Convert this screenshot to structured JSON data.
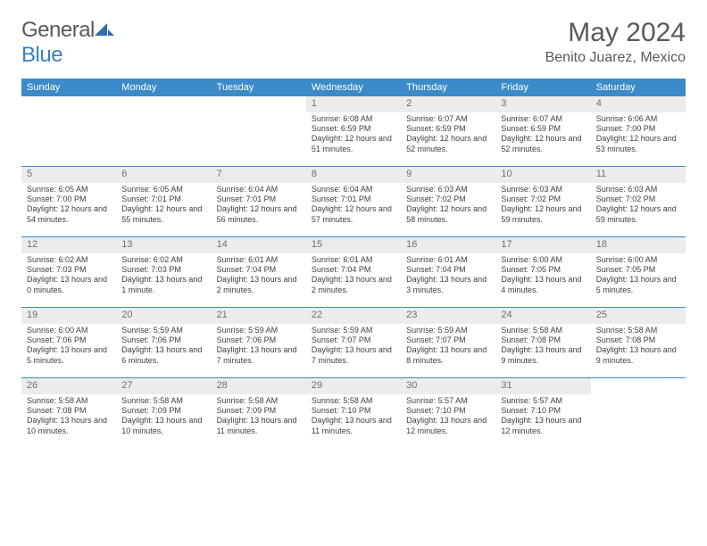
{
  "brand": {
    "name_gray": "General",
    "name_blue": "Blue"
  },
  "title": "May 2024",
  "location": "Benito Juarez, Mexico",
  "colors": {
    "header_bg": "#3b8bc9",
    "header_text": "#ffffff",
    "daynum_bg": "#ececec",
    "daynum_text": "#707070",
    "body_text": "#404040",
    "title_text": "#595959",
    "week_divider": "#3b8bc9"
  },
  "weekdays": [
    "Sunday",
    "Monday",
    "Tuesday",
    "Wednesday",
    "Thursday",
    "Friday",
    "Saturday"
  ],
  "weeks": [
    [
      null,
      null,
      null,
      {
        "n": "1",
        "sr": "6:08 AM",
        "ss": "6:59 PM",
        "dl": "12 hours and 51 minutes."
      },
      {
        "n": "2",
        "sr": "6:07 AM",
        "ss": "6:59 PM",
        "dl": "12 hours and 52 minutes."
      },
      {
        "n": "3",
        "sr": "6:07 AM",
        "ss": "6:59 PM",
        "dl": "12 hours and 52 minutes."
      },
      {
        "n": "4",
        "sr": "6:06 AM",
        "ss": "7:00 PM",
        "dl": "12 hours and 53 minutes."
      }
    ],
    [
      {
        "n": "5",
        "sr": "6:05 AM",
        "ss": "7:00 PM",
        "dl": "12 hours and 54 minutes."
      },
      {
        "n": "6",
        "sr": "6:05 AM",
        "ss": "7:01 PM",
        "dl": "12 hours and 55 minutes."
      },
      {
        "n": "7",
        "sr": "6:04 AM",
        "ss": "7:01 PM",
        "dl": "12 hours and 56 minutes."
      },
      {
        "n": "8",
        "sr": "6:04 AM",
        "ss": "7:01 PM",
        "dl": "12 hours and 57 minutes."
      },
      {
        "n": "9",
        "sr": "6:03 AM",
        "ss": "7:02 PM",
        "dl": "12 hours and 58 minutes."
      },
      {
        "n": "10",
        "sr": "6:03 AM",
        "ss": "7:02 PM",
        "dl": "12 hours and 59 minutes."
      },
      {
        "n": "11",
        "sr": "6:03 AM",
        "ss": "7:02 PM",
        "dl": "12 hours and 59 minutes."
      }
    ],
    [
      {
        "n": "12",
        "sr": "6:02 AM",
        "ss": "7:03 PM",
        "dl": "13 hours and 0 minutes."
      },
      {
        "n": "13",
        "sr": "6:02 AM",
        "ss": "7:03 PM",
        "dl": "13 hours and 1 minute."
      },
      {
        "n": "14",
        "sr": "6:01 AM",
        "ss": "7:04 PM",
        "dl": "13 hours and 2 minutes."
      },
      {
        "n": "15",
        "sr": "6:01 AM",
        "ss": "7:04 PM",
        "dl": "13 hours and 2 minutes."
      },
      {
        "n": "16",
        "sr": "6:01 AM",
        "ss": "7:04 PM",
        "dl": "13 hours and 3 minutes."
      },
      {
        "n": "17",
        "sr": "6:00 AM",
        "ss": "7:05 PM",
        "dl": "13 hours and 4 minutes."
      },
      {
        "n": "18",
        "sr": "6:00 AM",
        "ss": "7:05 PM",
        "dl": "13 hours and 5 minutes."
      }
    ],
    [
      {
        "n": "19",
        "sr": "6:00 AM",
        "ss": "7:06 PM",
        "dl": "13 hours and 5 minutes."
      },
      {
        "n": "20",
        "sr": "5:59 AM",
        "ss": "7:06 PM",
        "dl": "13 hours and 6 minutes."
      },
      {
        "n": "21",
        "sr": "5:59 AM",
        "ss": "7:06 PM",
        "dl": "13 hours and 7 minutes."
      },
      {
        "n": "22",
        "sr": "5:59 AM",
        "ss": "7:07 PM",
        "dl": "13 hours and 7 minutes."
      },
      {
        "n": "23",
        "sr": "5:59 AM",
        "ss": "7:07 PM",
        "dl": "13 hours and 8 minutes."
      },
      {
        "n": "24",
        "sr": "5:58 AM",
        "ss": "7:08 PM",
        "dl": "13 hours and 9 minutes."
      },
      {
        "n": "25",
        "sr": "5:58 AM",
        "ss": "7:08 PM",
        "dl": "13 hours and 9 minutes."
      }
    ],
    [
      {
        "n": "26",
        "sr": "5:58 AM",
        "ss": "7:08 PM",
        "dl": "13 hours and 10 minutes."
      },
      {
        "n": "27",
        "sr": "5:58 AM",
        "ss": "7:09 PM",
        "dl": "13 hours and 10 minutes."
      },
      {
        "n": "28",
        "sr": "5:58 AM",
        "ss": "7:09 PM",
        "dl": "13 hours and 11 minutes."
      },
      {
        "n": "29",
        "sr": "5:58 AM",
        "ss": "7:10 PM",
        "dl": "13 hours and 11 minutes."
      },
      {
        "n": "30",
        "sr": "5:57 AM",
        "ss": "7:10 PM",
        "dl": "13 hours and 12 minutes."
      },
      {
        "n": "31",
        "sr": "5:57 AM",
        "ss": "7:10 PM",
        "dl": "13 hours and 12 minutes."
      },
      null
    ]
  ],
  "labels": {
    "sunrise": "Sunrise:",
    "sunset": "Sunset:",
    "daylight": "Daylight:"
  }
}
